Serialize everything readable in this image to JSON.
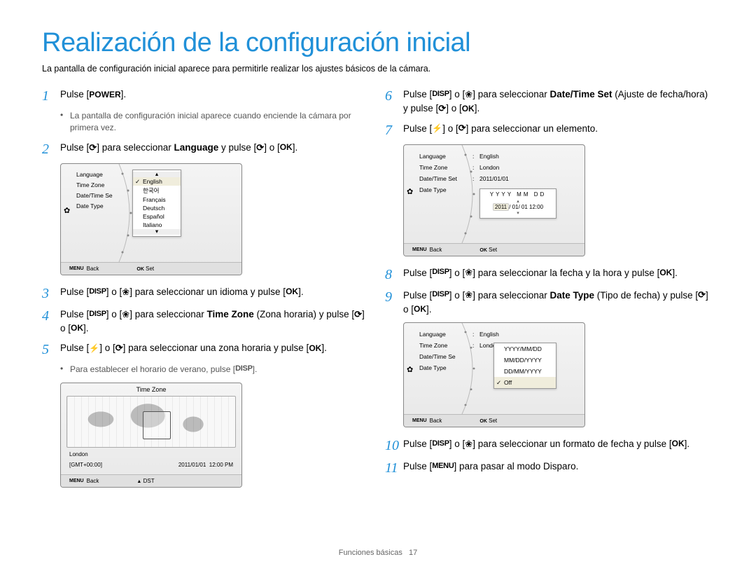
{
  "title": "Realización de la configuración inicial",
  "subtitle": "La pantalla de configuración inicial aparece para permitirle realizar los ajustes básicos de la cámara.",
  "footer": {
    "label": "Funciones básicas",
    "page": "17"
  },
  "icons": {
    "disp": "DISP",
    "ok": "OK",
    "menu": "MENU",
    "power": "POWER"
  },
  "steps_left": [
    {
      "n": "1",
      "text_before": "Pulse [",
      "bold1": "POWER",
      "text_after": "]."
    },
    {
      "bullet": "La pantalla de configuración inicial aparece cuando enciende la cámara por primera vez."
    },
    {
      "n": "2",
      "html": "Pulse [⟳] para seleccionar <b>Language</b> y pulse [⟳] o [<b>OK</b>]."
    },
    {
      "screen": "lang"
    },
    {
      "n": "3",
      "html": "Pulse [<b>DISP</b>] o [❀] para seleccionar un idioma y pulse [<b>OK</b>]."
    },
    {
      "n": "4",
      "html": "Pulse [<b>DISP</b>] o [❀] para seleccionar <b>Time Zone</b> (Zona horaria) y pulse [⟳] o [<b>OK</b>]."
    },
    {
      "n": "5",
      "html": "Pulse [⚡] o [⟳] para seleccionar una zona horaria y pulse [<b>OK</b>]."
    },
    {
      "bullet_html": "Para establecer el horario de verano, pulse [<b>DISP</b>]."
    },
    {
      "screen": "tz"
    }
  ],
  "steps_right": [
    {
      "n": "6",
      "html": "Pulse [<b>DISP</b>] o [❀] para seleccionar <b>Date/Time Set</b> (Ajuste de fecha/hora) y pulse [⟳] o [<b>OK</b>]."
    },
    {
      "n": "7",
      "html": "Pulse [⚡] o [⟳] para seleccionar un elemento."
    },
    {
      "screen": "dt"
    },
    {
      "n": "8",
      "html": "Pulse [<b>DISP</b>] o [❀] para seleccionar la fecha y la hora y pulse [<b>OK</b>]."
    },
    {
      "n": "9",
      "html": "Pulse [<b>DISP</b>] o [❀] para seleccionar <b>Date Type</b> (Tipo de fecha) y pulse [⟳] o [<b>OK</b>]."
    },
    {
      "screen": "type"
    },
    {
      "n": "10",
      "html": "Pulse [<b>DISP</b>] o [❀] para seleccionar un formato de fecha y pulse [<b>OK</b>]."
    },
    {
      "n": "11",
      "html": "Pulse [<b>MENU</b>] para pasar al modo Disparo."
    }
  ],
  "screens": {
    "lang": {
      "left_items": [
        "Language",
        "Time Zone",
        "Date/Time Se",
        "Date Type"
      ],
      "options": [
        "English",
        "한국어",
        "Français",
        "Deutsch",
        "Español",
        "Italiano"
      ],
      "selected": "English",
      "footer_left": "Back",
      "footer_right": "Set",
      "menu_label": "MENU",
      "ok_label": "OK"
    },
    "tz": {
      "title": "Time Zone",
      "city": "London",
      "gmt": "[GMT+00:00]",
      "date": "2011/01/01",
      "time": "12:00 PM",
      "footer_left": "Back",
      "footer_right": "DST",
      "menu_label": "MENU",
      "up_label": "▲"
    },
    "dt": {
      "left_items": [
        "Language",
        "Time Zone",
        "Date/Time Set",
        "Date Type"
      ],
      "values": [
        "English",
        "London",
        "2011/01/01",
        ""
      ],
      "popup_row1": "YYYY MM DD",
      "popup_row2_hl": "2011",
      "popup_row2_rest": "/ 01/ 01  12:00",
      "footer_left": "Back",
      "footer_right": "Set",
      "menu_label": "MENU",
      "ok_label": "OK"
    },
    "type": {
      "left_items": [
        "Language",
        "Time Zone",
        "Date/Time Se",
        "Date Type"
      ],
      "values": [
        "English",
        "London",
        "",
        ""
      ],
      "options": [
        "YYYY/MM/DD",
        "MM/DD/YYYY",
        "DD/MM/YYYY",
        "Off"
      ],
      "selected": "Off",
      "footer_left": "Back",
      "footer_right": "Set",
      "menu_label": "MENU",
      "ok_label": "OK"
    }
  }
}
